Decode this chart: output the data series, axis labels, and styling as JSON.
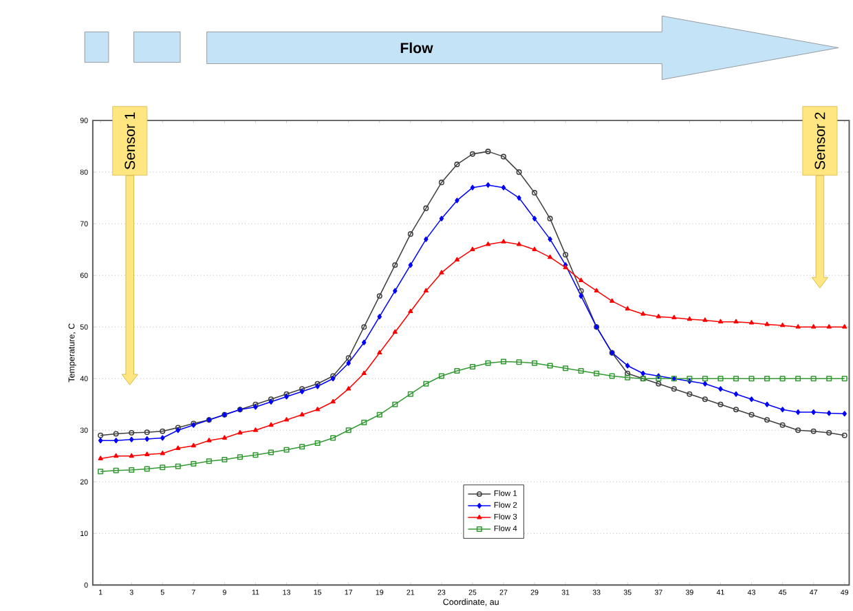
{
  "chart_data": {
    "type": "line",
    "xlabel": "Coordinate, au",
    "ylabel": "Temperature, C",
    "x": [
      1,
      2,
      3,
      4,
      5,
      6,
      7,
      8,
      9,
      10,
      11,
      12,
      13,
      14,
      15,
      16,
      17,
      18,
      19,
      20,
      21,
      22,
      23,
      24,
      25,
      26,
      27,
      28,
      29,
      30,
      31,
      32,
      33,
      34,
      35,
      36,
      37,
      38,
      39,
      40,
      41,
      42,
      43,
      44,
      45,
      46,
      47,
      48,
      49
    ],
    "series": [
      {
        "name": "Flow 1",
        "color": "#404040",
        "marker": "circle",
        "values": [
          29,
          29.3,
          29.5,
          29.6,
          29.8,
          30.5,
          31.3,
          32,
          33,
          34,
          35,
          36,
          37,
          38,
          39,
          40.5,
          44,
          50,
          56,
          62,
          68,
          73,
          78,
          81.5,
          83.5,
          84,
          83,
          80,
          76,
          71,
          64,
          57,
          50,
          45,
          41,
          40,
          39,
          38,
          37,
          36,
          35,
          34,
          33,
          32,
          31,
          30,
          29.8,
          29.5,
          29
        ]
      },
      {
        "name": "Flow 2",
        "color": "#0000ff",
        "marker": "diamond",
        "values": [
          28,
          28,
          28.2,
          28.3,
          28.5,
          30,
          31,
          32,
          33,
          34,
          34.5,
          35.5,
          36.5,
          37.5,
          38.5,
          40,
          43,
          47,
          52,
          57,
          62,
          67,
          71,
          74.5,
          77,
          77.5,
          77,
          75,
          71,
          67,
          62,
          56,
          50,
          45,
          42.5,
          41,
          40.5,
          40,
          39.5,
          39,
          38,
          37,
          36,
          35,
          34,
          33.5,
          33.5,
          33.3,
          33.2
        ]
      },
      {
        "name": "Flow 3",
        "color": "#ff0000",
        "marker": "triangle",
        "values": [
          24.5,
          25,
          25,
          25.3,
          25.5,
          26.5,
          27,
          28,
          28.5,
          29.5,
          30,
          31,
          32,
          33,
          34,
          35.5,
          38,
          41,
          45,
          49,
          53,
          57,
          60.5,
          63,
          65,
          66,
          66.5,
          66,
          65,
          63.5,
          61.5,
          59,
          57,
          55,
          53.5,
          52.5,
          52,
          51.8,
          51.5,
          51.3,
          51,
          51,
          50.8,
          50.5,
          50.3,
          50,
          50,
          50,
          50
        ]
      },
      {
        "name": "Flow 4",
        "color": "#339933",
        "marker": "square",
        "values": [
          22,
          22.2,
          22.3,
          22.5,
          22.8,
          23,
          23.5,
          24,
          24.3,
          24.8,
          25.2,
          25.7,
          26.2,
          26.8,
          27.5,
          28.5,
          30,
          31.5,
          33,
          35,
          37,
          39,
          40.5,
          41.5,
          42.3,
          43,
          43.3,
          43.2,
          43,
          42.5,
          42,
          41.5,
          41,
          40.5,
          40.2,
          40,
          40,
          40,
          40,
          40,
          40,
          40,
          40,
          40,
          40,
          40,
          40,
          40,
          40
        ]
      }
    ],
    "xlim": [
      0.5,
      49.3
    ],
    "ylim": [
      0,
      90
    ],
    "xticks": [
      1,
      3,
      5,
      7,
      9,
      11,
      13,
      15,
      17,
      19,
      21,
      23,
      25,
      27,
      29,
      31,
      33,
      35,
      37,
      39,
      41,
      43,
      45,
      47,
      49
    ],
    "yticks": [
      0,
      10,
      20,
      30,
      40,
      50,
      60,
      70,
      80,
      90
    ],
    "grid": "y",
    "legend": "bottom",
    "line_style": "solid",
    "annotations": [
      "Flow",
      "Sensor 1",
      "Sensor 2"
    ]
  }
}
